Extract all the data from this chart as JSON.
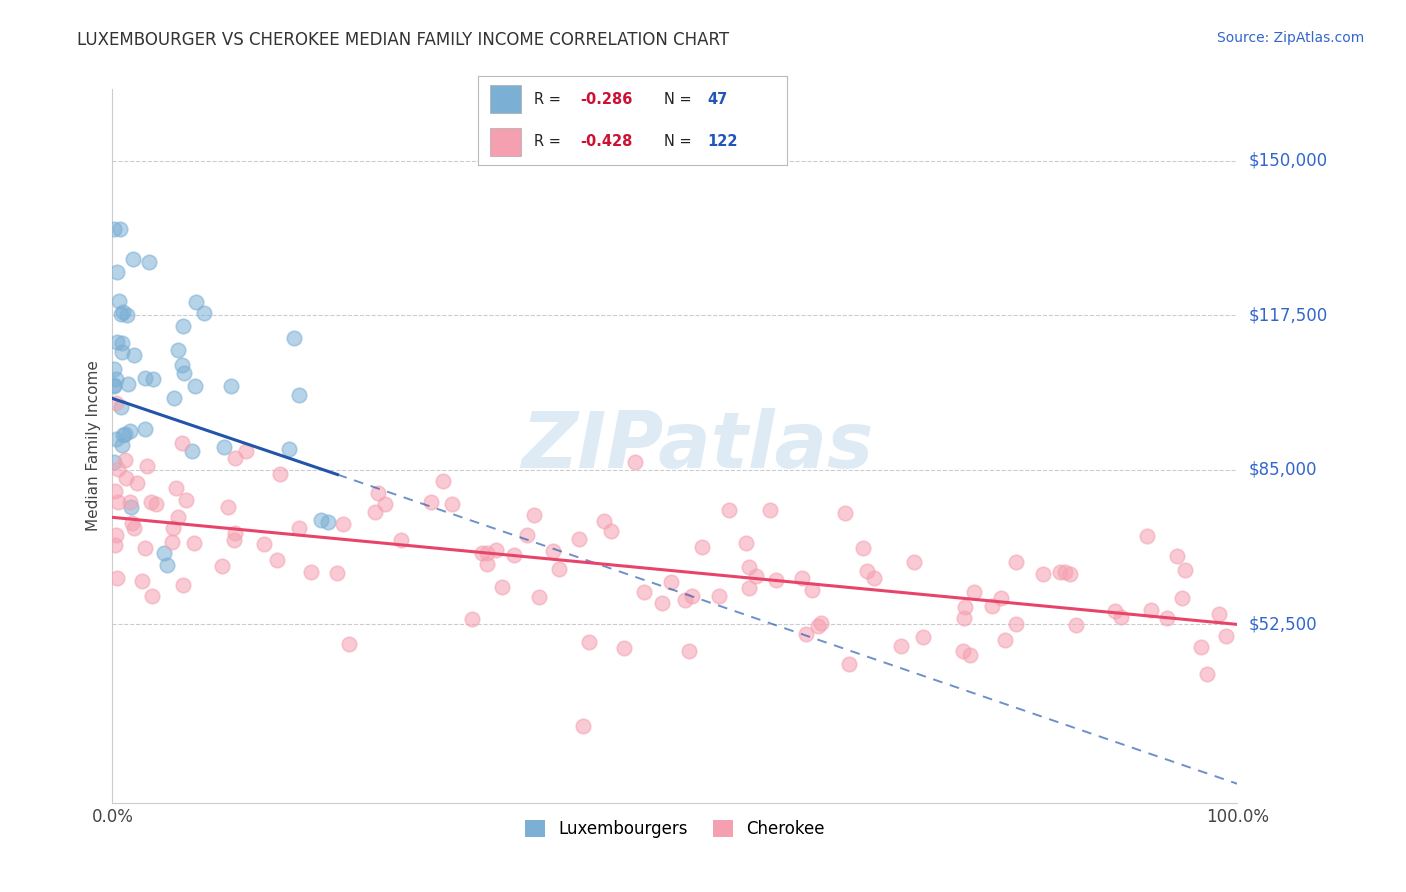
{
  "title": "LUXEMBOURGER VS CHEROKEE MEDIAN FAMILY INCOME CORRELATION CHART",
  "source_text": "Source: ZipAtlas.com",
  "ylabel": "Median Family Income",
  "xlim": [
    0.0,
    100.0
  ],
  "ylim": [
    15000,
    165000
  ],
  "ytick_values": [
    52500,
    85000,
    117500,
    150000
  ],
  "ytick_labels": [
    "$52,500",
    "$85,000",
    "$117,500",
    "$150,000"
  ],
  "xtick_values": [
    0,
    100
  ],
  "xtick_labels": [
    "0.0%",
    "100.0%"
  ],
  "r_lux": -0.286,
  "n_lux": 47,
  "r_cher": -0.428,
  "n_cher": 122,
  "color_lux": "#7BAFD4",
  "color_cher": "#F5A0B0",
  "color_lux_line": "#2255AA",
  "color_cher_line": "#E8446A",
  "legend_label_lux": "Luxembourgers",
  "legend_label_cher": "Cherokee",
  "watermark": "ZIPatlas",
  "background_color": "#FFFFFF",
  "lux_line_x0": 0,
  "lux_line_y0": 100000,
  "lux_line_x1": 20,
  "lux_line_y1": 84000,
  "lux_dash_x0": 20,
  "lux_dash_y0": 84000,
  "lux_dash_x1": 100,
  "lux_dash_y1": 19000,
  "cher_line_x0": 0,
  "cher_line_y0": 75000,
  "cher_line_x1": 100,
  "cher_line_y1": 52500
}
